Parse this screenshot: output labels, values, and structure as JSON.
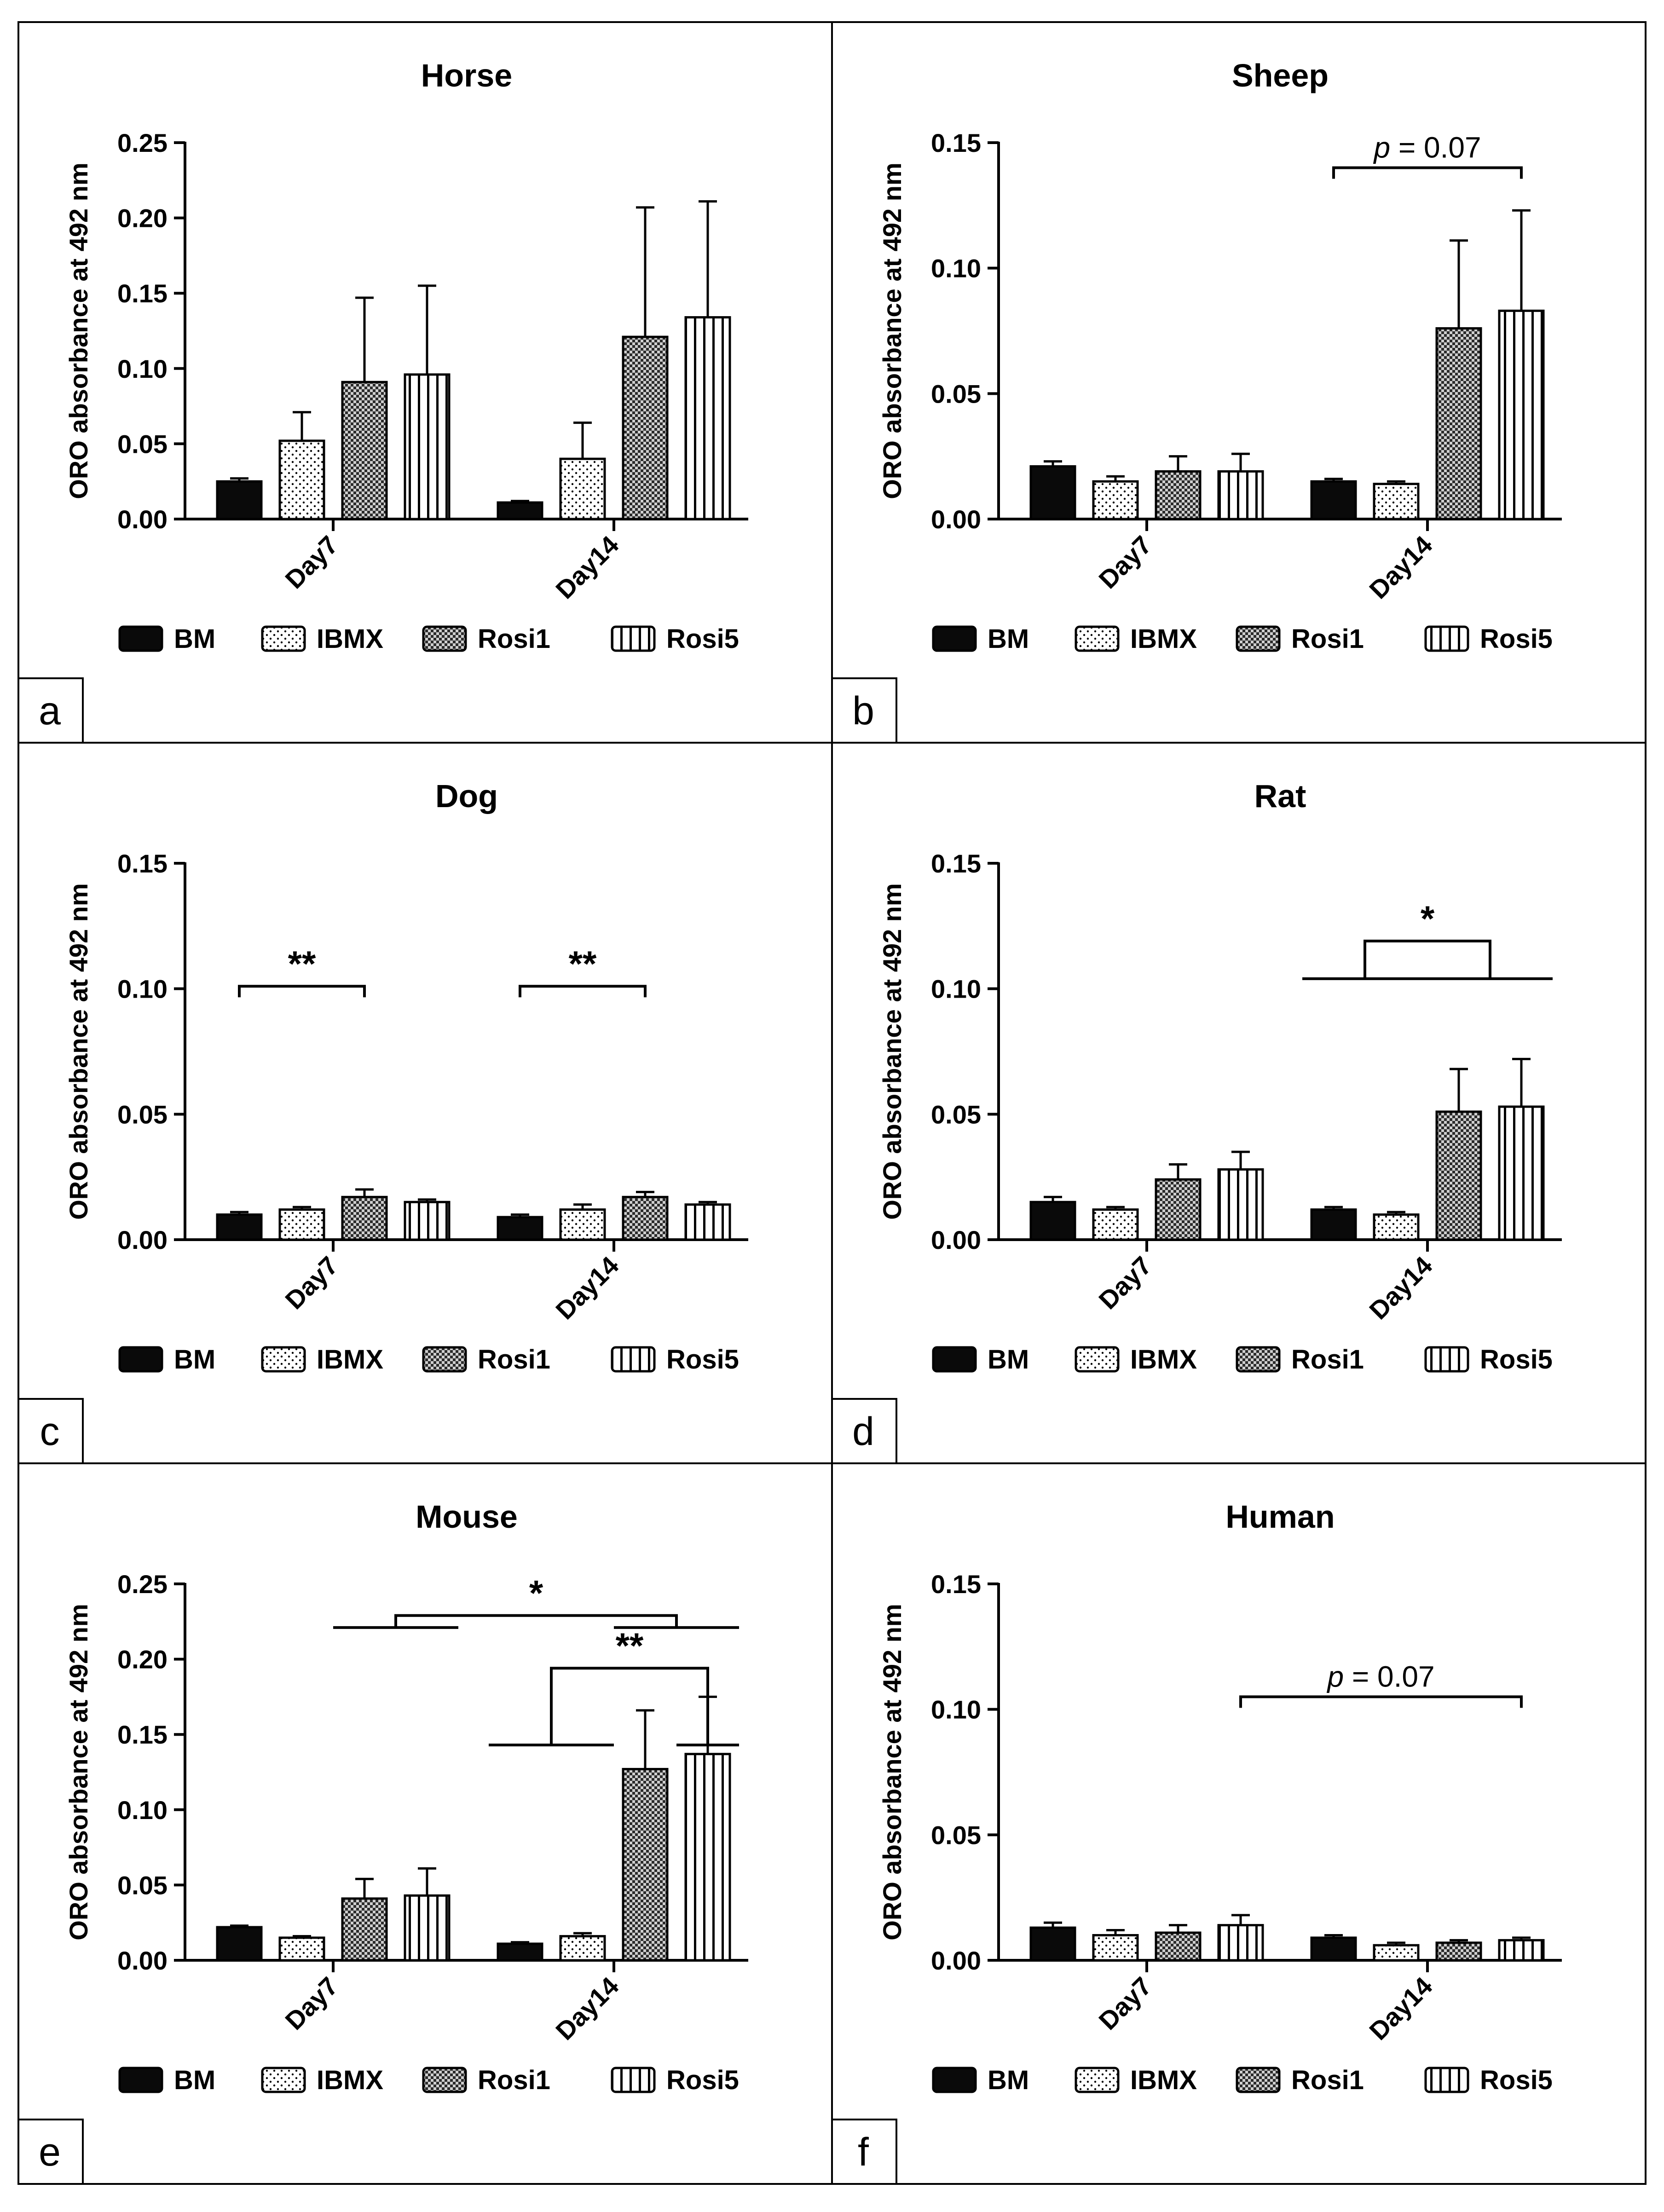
{
  "chart_data": [
    {
      "panel_label": "a",
      "type": "bar",
      "title": "Horse",
      "ylabel": "ORO absorbance at 492 nm",
      "xlabel": "",
      "ylim": [
        0,
        0.25
      ],
      "yticks": [
        "0.00",
        "0.05",
        "0.10",
        "0.15",
        "0.20",
        "0.25"
      ],
      "categories": [
        "Day7",
        "Day14"
      ],
      "series": [
        {
          "name": "BM",
          "values": [
            0.025,
            0.011
          ],
          "errors": [
            0.002,
            0.001
          ]
        },
        {
          "name": "IBMX",
          "values": [
            0.052,
            0.04
          ],
          "errors": [
            0.019,
            0.024
          ]
        },
        {
          "name": "Rosi1",
          "values": [
            0.091,
            0.121
          ],
          "errors": [
            0.056,
            0.086
          ]
        },
        {
          "name": "Rosi5",
          "values": [
            0.096,
            0.134
          ],
          "errors": [
            0.059,
            0.077
          ]
        }
      ],
      "annotations": []
    },
    {
      "panel_label": "b",
      "type": "bar",
      "title": "Sheep",
      "ylabel": "ORO absorbance at 492 nm",
      "xlabel": "",
      "ylim": [
        0,
        0.15
      ],
      "yticks": [
        "0.00",
        "0.05",
        "0.10",
        "0.15"
      ],
      "categories": [
        "Day7",
        "Day14"
      ],
      "series": [
        {
          "name": "BM",
          "values": [
            0.021,
            0.015
          ],
          "errors": [
            0.002,
            0.001
          ]
        },
        {
          "name": "IBMX",
          "values": [
            0.015,
            0.014
          ],
          "errors": [
            0.002,
            0.001
          ]
        },
        {
          "name": "Rosi1",
          "values": [
            0.019,
            0.076
          ],
          "errors": [
            0.006,
            0.035
          ]
        },
        {
          "name": "Rosi5",
          "values": [
            0.019,
            0.083
          ],
          "errors": [
            0.007,
            0.04
          ]
        }
      ],
      "annotations": [
        {
          "kind": "bracket",
          "text_prefix": "p",
          "text": " = 0.07",
          "italic_prefix": true,
          "y": 0.14,
          "from": [
            1,
            0
          ],
          "to": [
            1,
            3
          ]
        }
      ]
    },
    {
      "panel_label": "c",
      "type": "bar",
      "title": "Dog",
      "ylabel": "ORO absorbance at 492 nm",
      "xlabel": "",
      "ylim": [
        0,
        0.15
      ],
      "yticks": [
        "0.00",
        "0.05",
        "0.10",
        "0.15"
      ],
      "categories": [
        "Day7",
        "Day14"
      ],
      "series": [
        {
          "name": "BM",
          "values": [
            0.01,
            0.009
          ],
          "errors": [
            0.001,
            0.001
          ]
        },
        {
          "name": "IBMX",
          "values": [
            0.012,
            0.012
          ],
          "errors": [
            0.001,
            0.002
          ]
        },
        {
          "name": "Rosi1",
          "values": [
            0.017,
            0.017
          ],
          "errors": [
            0.003,
            0.002
          ]
        },
        {
          "name": "Rosi5",
          "values": [
            0.015,
            0.014
          ],
          "errors": [
            0.001,
            0.001
          ]
        }
      ],
      "annotations": [
        {
          "kind": "bracket",
          "text": "**",
          "y": 0.101,
          "from": [
            0,
            0
          ],
          "to": [
            0,
            2
          ]
        },
        {
          "kind": "bracket",
          "text": "**",
          "y": 0.101,
          "from": [
            1,
            0
          ],
          "to": [
            1,
            2
          ]
        }
      ]
    },
    {
      "panel_label": "d",
      "type": "bar",
      "title": "Rat",
      "ylabel": "ORO absorbance at 492 nm",
      "xlabel": "",
      "ylim": [
        0,
        0.15
      ],
      "yticks": [
        "0.00",
        "0.05",
        "0.10",
        "0.15"
      ],
      "categories": [
        "Day7",
        "Day14"
      ],
      "series": [
        {
          "name": "BM",
          "values": [
            0.015,
            0.012
          ],
          "errors": [
            0.002,
            0.001
          ]
        },
        {
          "name": "IBMX",
          "values": [
            0.012,
            0.01
          ],
          "errors": [
            0.001,
            0.001
          ]
        },
        {
          "name": "Rosi1",
          "values": [
            0.024,
            0.051
          ],
          "errors": [
            0.006,
            0.017
          ]
        },
        {
          "name": "Rosi5",
          "values": [
            0.028,
            0.053
          ],
          "errors": [
            0.007,
            0.019
          ]
        }
      ],
      "annotations": [
        {
          "kind": "group_bracket",
          "text": "*",
          "y": 0.119,
          "line_y": 0.104,
          "from_group": [
            [
              1,
              0
            ],
            [
              1,
              1
            ]
          ],
          "to_group": [
            [
              1,
              2
            ],
            [
              1,
              3
            ]
          ]
        }
      ]
    },
    {
      "panel_label": "e",
      "type": "bar",
      "title": "Mouse",
      "ylabel": "ORO absorbance at 492 nm",
      "xlabel": "",
      "ylim": [
        0,
        0.25
      ],
      "yticks": [
        "0.00",
        "0.05",
        "0.10",
        "0.15",
        "0.20",
        "0.25"
      ],
      "categories": [
        "Day7",
        "Day14"
      ],
      "series": [
        {
          "name": "BM",
          "values": [
            0.022,
            0.011
          ],
          "errors": [
            0.001,
            0.001
          ]
        },
        {
          "name": "IBMX",
          "values": [
            0.015,
            0.016
          ],
          "errors": [
            0.001,
            0.002
          ]
        },
        {
          "name": "Rosi1",
          "values": [
            0.041,
            0.127
          ],
          "errors": [
            0.013,
            0.039
          ]
        },
        {
          "name": "Rosi5",
          "values": [
            0.043,
            0.137
          ],
          "errors": [
            0.018,
            0.038
          ]
        }
      ],
      "annotations": [
        {
          "kind": "group_bracket",
          "text": "*",
          "y": 0.229,
          "line_y": 0.221,
          "from_group": [
            [
              0,
              2
            ],
            [
              0,
              3
            ]
          ],
          "to_group": [
            [
              1,
              2
            ],
            [
              1,
              3
            ]
          ]
        },
        {
          "kind": "group_bracket",
          "text": "**",
          "y": 0.194,
          "line_y": 0.143,
          "from_group": [
            [
              1,
              0
            ],
            [
              1,
              1
            ]
          ],
          "to_group": [
            [
              1,
              3
            ],
            [
              1,
              3
            ]
          ]
        }
      ]
    },
    {
      "panel_label": "f",
      "type": "bar",
      "title": "Human",
      "ylabel": "ORO absorbance at 492 nm",
      "xlabel": "",
      "ylim": [
        0,
        0.15
      ],
      "yticks": [
        "0.00",
        "0.05",
        "0.10",
        "0.15"
      ],
      "categories": [
        "Day7",
        "Day14"
      ],
      "series": [
        {
          "name": "BM",
          "values": [
            0.013,
            0.009
          ],
          "errors": [
            0.002,
            0.001
          ]
        },
        {
          "name": "IBMX",
          "values": [
            0.01,
            0.006
          ],
          "errors": [
            0.002,
            0.001
          ]
        },
        {
          "name": "Rosi1",
          "values": [
            0.011,
            0.007
          ],
          "errors": [
            0.003,
            0.001
          ]
        },
        {
          "name": "Rosi5",
          "values": [
            0.014,
            0.008
          ],
          "errors": [
            0.004,
            0.001
          ]
        }
      ],
      "annotations": [
        {
          "kind": "bracket",
          "text_prefix": "p",
          "text": " = 0.07",
          "italic_prefix": true,
          "y": 0.105,
          "from": [
            0,
            3
          ],
          "to": [
            1,
            3
          ]
        }
      ]
    }
  ],
  "colors": {
    "BM": "#0a0a0a",
    "IBMX": "#ffffff",
    "Rosi1": "#6d6d6d",
    "Rosi5": "#ffffff",
    "line": "#000000"
  },
  "fills": {
    "BM": "solid",
    "IBMX": "dots",
    "Rosi1": "checker",
    "Rosi5": "vertical-stripes"
  }
}
